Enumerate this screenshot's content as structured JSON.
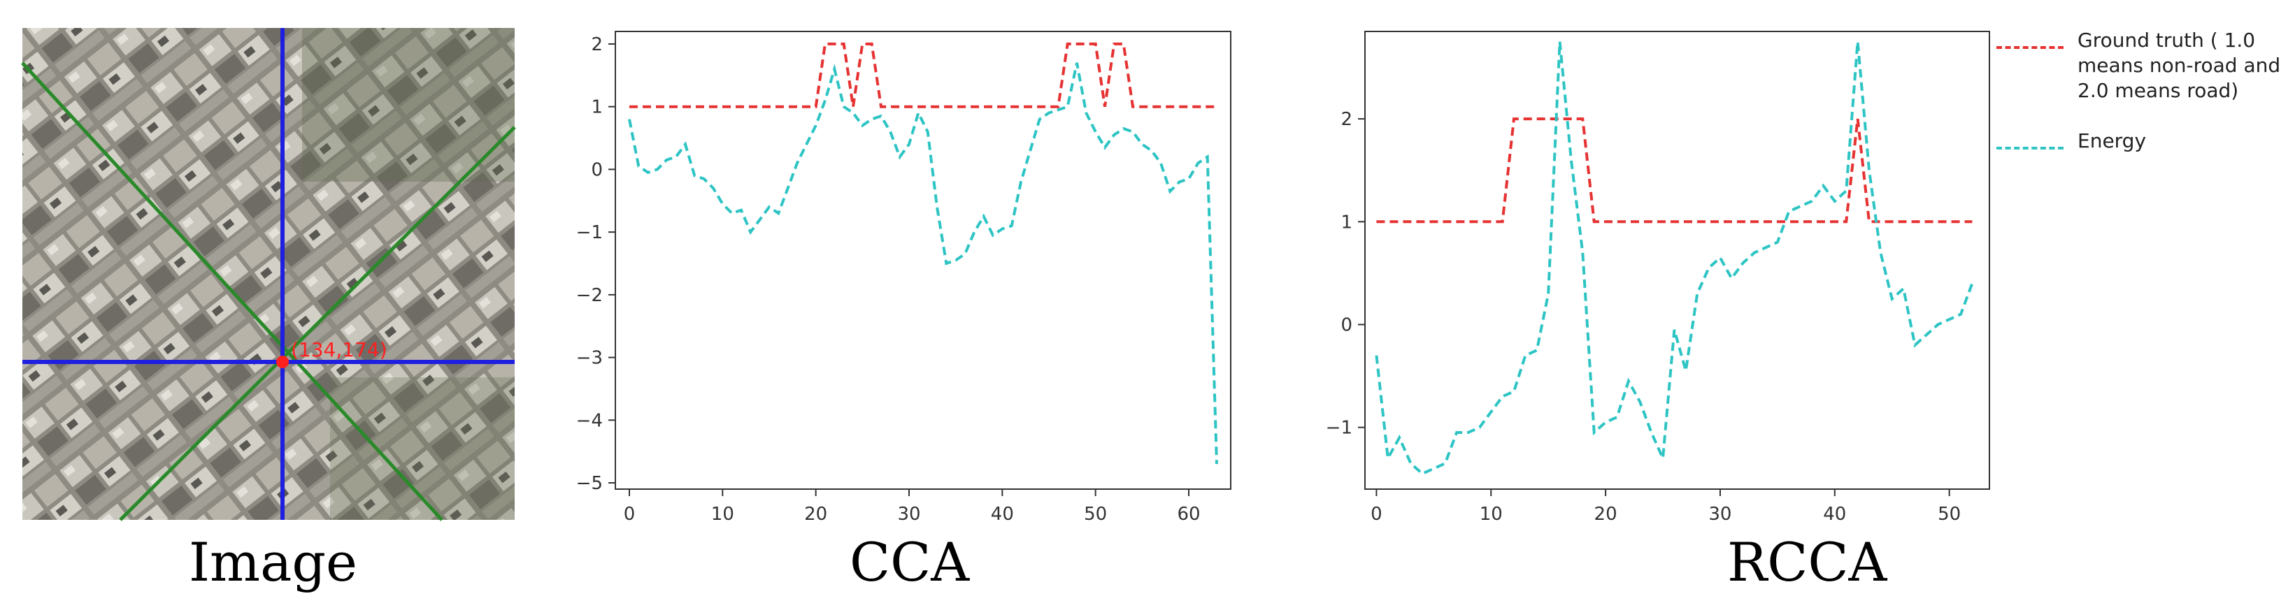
{
  "panels": {
    "image": {
      "caption": "Image",
      "point_label": "(134,174)",
      "colors": {
        "vertical_line": "#1f1fe0",
        "horizontal_line": "#1f1fe0",
        "diagonal_lines": "#2a8a2a",
        "point": "#ff2020",
        "ground": "#8c8a84"
      }
    },
    "cca": {
      "caption": "CCA"
    },
    "rcca": {
      "caption": "RCCA"
    }
  },
  "legend": {
    "ground_truth": "Ground truth ( 1.0 means non-road and 2.0 means road)",
    "energy": "Energy"
  },
  "colors": {
    "ground_truth": "#e63232",
    "energy": "#2ec4c4",
    "axes": "#333333"
  },
  "chart_data": [
    {
      "type": "line",
      "title": "CCA",
      "xlim": [
        -1.5,
        64.5
      ],
      "ylim": [
        -5.1,
        2.2
      ],
      "xticks": [
        0,
        10,
        20,
        30,
        40,
        50,
        60
      ],
      "yticks": [
        -5,
        -4,
        -3,
        -2,
        -1,
        0,
        1,
        2
      ],
      "series": [
        {
          "name": "Ground truth ( 1.0 means non-road and 2.0 means road)",
          "x": [
            0,
            20,
            21,
            23,
            24,
            25,
            26,
            27,
            46,
            47,
            50,
            51,
            52,
            53,
            54,
            63
          ],
          "y": [
            1,
            1,
            2,
            2,
            1,
            2,
            2,
            1,
            1,
            2,
            2,
            1,
            2,
            2,
            1,
            1
          ]
        },
        {
          "name": "Energy",
          "x": [
            0,
            1,
            2,
            3,
            4,
            5,
            6,
            7,
            8,
            9,
            10,
            11,
            12,
            13,
            14,
            15,
            16,
            17,
            18,
            19,
            20,
            21,
            22,
            23,
            24,
            25,
            26,
            27,
            28,
            29,
            30,
            31,
            32,
            33,
            34,
            35,
            36,
            37,
            38,
            39,
            40,
            41,
            42,
            43,
            44,
            45,
            46,
            47,
            48,
            49,
            50,
            51,
            52,
            53,
            54,
            55,
            56,
            57,
            58,
            59,
            60,
            61,
            62,
            63
          ],
          "y": [
            0.8,
            0.05,
            -0.05,
            0.0,
            0.15,
            0.2,
            0.4,
            -0.1,
            -0.15,
            -0.3,
            -0.55,
            -0.7,
            -0.65,
            -1.0,
            -0.8,
            -0.6,
            -0.7,
            -0.3,
            0.1,
            0.4,
            0.7,
            1.1,
            1.6,
            1.0,
            0.9,
            0.7,
            0.8,
            0.85,
            0.6,
            0.2,
            0.4,
            0.9,
            0.6,
            -0.6,
            -1.5,
            -1.45,
            -1.35,
            -1.0,
            -0.75,
            -1.05,
            -0.95,
            -0.9,
            -0.2,
            0.3,
            0.8,
            0.9,
            0.95,
            1.0,
            1.7,
            0.9,
            0.6,
            0.35,
            0.55,
            0.65,
            0.6,
            0.4,
            0.3,
            0.1,
            -0.35,
            -0.2,
            -0.15,
            0.1,
            0.2,
            -4.7
          ]
        }
      ]
    },
    {
      "type": "line",
      "title": "RCCA",
      "xlim": [
        -1,
        53.5
      ],
      "ylim": [
        -1.6,
        2.85
      ],
      "xticks": [
        0,
        10,
        20,
        30,
        40,
        50
      ],
      "yticks": [
        -1,
        0,
        1,
        2
      ],
      "series": [
        {
          "name": "Ground truth ( 1.0 means non-road and 2.0 means road)",
          "x": [
            0,
            11,
            12,
            18,
            19,
            41,
            42,
            43,
            52
          ],
          "y": [
            1,
            1,
            2,
            2,
            1,
            1,
            2,
            1,
            1
          ]
        },
        {
          "name": "Energy",
          "x": [
            0,
            1,
            2,
            3,
            4,
            5,
            6,
            7,
            8,
            9,
            10,
            11,
            12,
            13,
            14,
            15,
            16,
            17,
            18,
            19,
            20,
            21,
            22,
            23,
            24,
            25,
            26,
            27,
            28,
            29,
            30,
            31,
            32,
            33,
            34,
            35,
            36,
            37,
            38,
            39,
            40,
            41,
            42,
            43,
            44,
            45,
            46,
            47,
            48,
            49,
            50,
            51,
            52
          ],
          "y": [
            -0.3,
            -1.3,
            -1.1,
            -1.35,
            -1.45,
            -1.4,
            -1.35,
            -1.05,
            -1.05,
            -1.0,
            -0.85,
            -0.7,
            -0.65,
            -0.3,
            -0.25,
            0.3,
            2.75,
            1.6,
            0.7,
            -1.05,
            -0.95,
            -0.9,
            -0.55,
            -0.75,
            -1.05,
            -1.3,
            -0.05,
            -0.45,
            0.3,
            0.55,
            0.65,
            0.45,
            0.6,
            0.7,
            0.75,
            0.8,
            1.1,
            1.15,
            1.2,
            1.35,
            1.2,
            1.3,
            2.75,
            1.5,
            0.7,
            0.25,
            0.35,
            -0.2,
            -0.1,
            0.0,
            0.05,
            0.1,
            0.4
          ]
        }
      ]
    }
  ]
}
